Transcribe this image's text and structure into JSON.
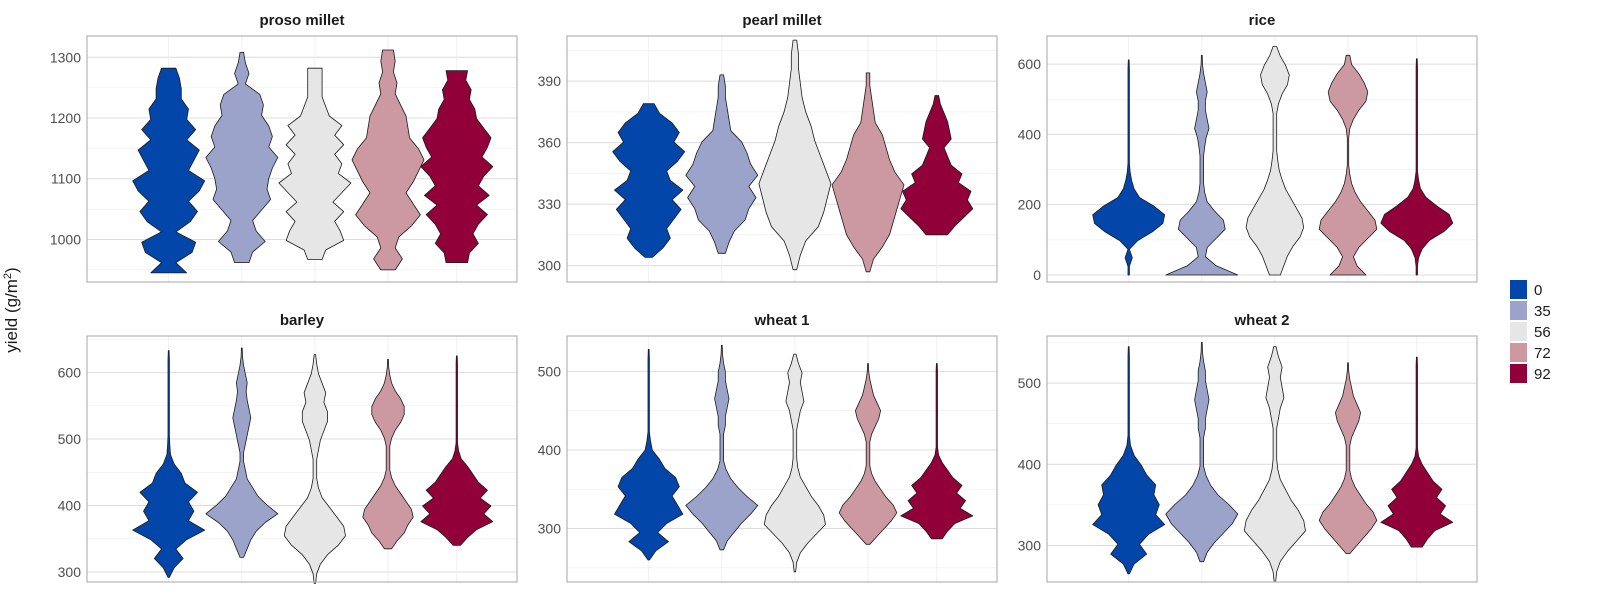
{
  "chart_data": {
    "type": "violin",
    "ylabel": "yield (g/m²)",
    "ylabel_parts": {
      "main": "yield (g/m",
      "sup": "2",
      "end": ")"
    },
    "xlabel": "",
    "grid": true,
    "legend": {
      "placement": "right",
      "title": "",
      "entries": [
        {
          "label": "0",
          "color": "#0346AA"
        },
        {
          "label": "35",
          "color": "#9BA3CB"
        },
        {
          "label": "56",
          "color": "#E6E6E6"
        },
        {
          "label": "72",
          "color": "#CC98A1"
        },
        {
          "label": "92",
          "color": "#910039"
        }
      ]
    },
    "panels": [
      {
        "title": "proso millet",
        "ylim": [
          930,
          1335
        ],
        "yticks": [
          1000,
          1100,
          1200,
          1300
        ],
        "series": [
          {
            "group": "0",
            "min": 945,
            "max": 1282,
            "w": [
              0.5,
              0.2,
              0.65,
              0.75,
              0.2,
              0.6,
              0.8,
              0.55,
              0.85,
              1.0,
              0.55,
              0.7,
              0.85,
              0.5,
              0.75,
              0.5,
              0.55,
              0.35,
              0.35,
              0.3,
              0.2
            ]
          },
          {
            "group": "35",
            "min": 962,
            "max": 1308,
            "w": [
              0.2,
              0.3,
              0.65,
              0.4,
              0.3,
              0.55,
              0.8,
              0.7,
              0.75,
              0.85,
              1.0,
              0.75,
              0.85,
              0.75,
              0.55,
              0.6,
              0.5,
              0.1,
              0.2,
              0.1,
              0.05
            ]
          },
          {
            "group": "56",
            "min": 967,
            "max": 1282,
            "w": [
              0.2,
              0.3,
              0.8,
              0.7,
              0.55,
              0.8,
              0.5,
              0.75,
              1.0,
              0.65,
              0.75,
              0.55,
              0.8,
              0.55,
              0.75,
              0.4,
              0.3,
              0.2,
              0.2,
              0.2,
              0.2
            ]
          },
          {
            "group": "72",
            "min": 950,
            "max": 1312,
            "w": [
              0.2,
              0.4,
              0.2,
              0.3,
              0.65,
              0.9,
              0.7,
              0.5,
              0.7,
              0.85,
              1.0,
              0.85,
              0.6,
              0.55,
              0.5,
              0.35,
              0.2,
              0.25,
              0.15,
              0.2,
              0.15
            ]
          },
          {
            "group": "92",
            "min": 962,
            "max": 1278,
            "w": [
              0.3,
              0.35,
              0.6,
              0.45,
              0.6,
              0.85,
              0.55,
              0.9,
              0.6,
              0.75,
              1.0,
              0.7,
              0.85,
              0.95,
              0.75,
              0.55,
              0.5,
              0.35,
              0.4,
              0.25,
              0.3
            ]
          }
        ]
      },
      {
        "title": "pearl millet",
        "ylim": [
          292,
          412
        ],
        "yticks": [
          300,
          330,
          360,
          390
        ],
        "series": [
          {
            "group": "0",
            "min": 304,
            "max": 379,
            "w": [
              0.1,
              0.4,
              0.6,
              0.5,
              0.7,
              0.9,
              0.65,
              0.95,
              0.6,
              0.5,
              0.8,
              1.0,
              0.7,
              0.85,
              0.65,
              0.3,
              0.15
            ]
          },
          {
            "group": "35",
            "min": 306,
            "max": 393,
            "w": [
              0.1,
              0.2,
              0.35,
              0.65,
              0.75,
              0.95,
              0.75,
              1.0,
              0.8,
              0.7,
              0.55,
              0.25,
              0.2,
              0.15,
              0.1,
              0.1,
              0.05
            ]
          },
          {
            "group": "56",
            "min": 298,
            "max": 410,
            "w": [
              0.05,
              0.15,
              0.3,
              0.65,
              0.8,
              0.9,
              1.0,
              0.85,
              0.7,
              0.55,
              0.45,
              0.3,
              0.2,
              0.15,
              0.1,
              0.1,
              0.05
            ]
          },
          {
            "group": "72",
            "min": 297,
            "max": 394,
            "w": [
              0.05,
              0.15,
              0.4,
              0.6,
              0.7,
              0.8,
              0.9,
              1.0,
              0.75,
              0.6,
              0.5,
              0.4,
              0.2,
              0.15,
              0.1,
              0.05,
              0.05
            ]
          },
          {
            "group": "92",
            "min": 315,
            "max": 383,
            "w": [
              0.3,
              0.5,
              0.75,
              1.0,
              0.85,
              0.95,
              0.6,
              0.7,
              0.4,
              0.3,
              0.2,
              0.4,
              0.35,
              0.3,
              0.2,
              0.1,
              0.05
            ]
          }
        ]
      },
      {
        "title": "rice",
        "ylim": [
          -20,
          680
        ],
        "yticks": [
          0,
          200,
          400,
          600
        ],
        "series": [
          {
            "group": "0",
            "min": 0,
            "max": 612,
            "w": [
              0.02,
              0.02,
              0.1,
              0.02,
              0.25,
              0.65,
              0.95,
              1.0,
              0.7,
              0.3,
              0.15,
              0.08,
              0.04,
              0.02,
              0.02,
              0.02,
              0.02,
              0.02,
              0.02,
              0.02,
              0.02,
              0.02,
              0.02,
              0.02,
              0.02,
              0.01
            ]
          },
          {
            "group": "35",
            "min": 0,
            "max": 625,
            "w": [
              1.0,
              0.4,
              0.1,
              0.15,
              0.4,
              0.65,
              0.6,
              0.35,
              0.15,
              0.08,
              0.05,
              0.05,
              0.05,
              0.05,
              0.08,
              0.12,
              0.2,
              0.15,
              0.1,
              0.1,
              0.15,
              0.1,
              0.05,
              0.02,
              0.01
            ]
          },
          {
            "group": "56",
            "min": 0,
            "max": 650,
            "w": [
              0.15,
              0.25,
              0.35,
              0.5,
              0.7,
              0.8,
              0.75,
              0.6,
              0.45,
              0.3,
              0.2,
              0.12,
              0.08,
              0.05,
              0.05,
              0.05,
              0.05,
              0.05,
              0.1,
              0.2,
              0.35,
              0.4,
              0.3,
              0.15,
              0.05
            ]
          },
          {
            "group": "72",
            "min": 0,
            "max": 625,
            "w": [
              0.5,
              0.25,
              0.15,
              0.3,
              0.55,
              0.8,
              0.75,
              0.55,
              0.35,
              0.2,
              0.1,
              0.05,
              0.02,
              0.02,
              0.02,
              0.02,
              0.05,
              0.15,
              0.3,
              0.5,
              0.55,
              0.45,
              0.3,
              0.1,
              0.05
            ]
          },
          {
            "group": "92",
            "min": 0,
            "max": 615,
            "w": [
              0.02,
              0.02,
              0.05,
              0.15,
              0.35,
              0.75,
              1.0,
              0.9,
              0.55,
              0.25,
              0.1,
              0.05,
              0.02,
              0.02,
              0.02,
              0.02,
              0.02,
              0.02,
              0.02,
              0.02,
              0.02,
              0.02,
              0.02,
              0.02,
              0.02,
              0.01
            ]
          }
        ]
      },
      {
        "title": "barley",
        "ylim": [
          285,
          655
        ],
        "yticks": [
          300,
          400,
          500,
          600
        ],
        "series": [
          {
            "group": "0",
            "min": 292,
            "max": 633,
            "w": [
              0.02,
              0.15,
              0.4,
              0.2,
              0.5,
              1.0,
              0.55,
              0.7,
              0.55,
              0.8,
              0.45,
              0.35,
              0.15,
              0.05,
              0.03,
              0.02,
              0.02,
              0.02,
              0.02,
              0.02,
              0.02,
              0.02,
              0.02,
              0.02,
              0.01
            ]
          },
          {
            "group": "35",
            "min": 322,
            "max": 637,
            "w": [
              0.05,
              0.15,
              0.25,
              0.4,
              0.65,
              1.0,
              0.7,
              0.45,
              0.3,
              0.15,
              0.1,
              0.05,
              0.05,
              0.1,
              0.15,
              0.2,
              0.25,
              0.2,
              0.15,
              0.12,
              0.15,
              0.1,
              0.05,
              0.02,
              0.01
            ]
          },
          {
            "group": "56",
            "min": 283,
            "max": 627,
            "w": [
              0.02,
              0.05,
              0.15,
              0.35,
              0.65,
              0.85,
              0.8,
              0.6,
              0.4,
              0.2,
              0.1,
              0.05,
              0.05,
              0.05,
              0.1,
              0.15,
              0.25,
              0.35,
              0.35,
              0.25,
              0.3,
              0.2,
              0.1,
              0.05,
              0.02
            ]
          },
          {
            "group": "72",
            "min": 335,
            "max": 620,
            "w": [
              0.1,
              0.25,
              0.45,
              0.55,
              0.7,
              0.65,
              0.5,
              0.35,
              0.2,
              0.1,
              0.05,
              0.05,
              0.05,
              0.05,
              0.1,
              0.2,
              0.35,
              0.45,
              0.45,
              0.35,
              0.2,
              0.1,
              0.05,
              0.02,
              0.01
            ]
          },
          {
            "group": "92",
            "min": 340,
            "max": 625,
            "w": [
              0.1,
              0.3,
              0.55,
              1.0,
              0.75,
              0.95,
              0.65,
              0.85,
              0.6,
              0.45,
              0.3,
              0.12,
              0.05,
              0.02,
              0.02,
              0.02,
              0.02,
              0.02,
              0.02,
              0.02,
              0.02,
              0.02,
              0.02,
              0.02,
              0.01
            ]
          }
        ]
      },
      {
        "title": "wheat 1",
        "ylim": [
          232,
          545
        ],
        "yticks": [
          300,
          400,
          500
        ],
        "series": [
          {
            "group": "0",
            "min": 260,
            "max": 528,
            "w": [
              0.02,
              0.2,
              0.55,
              0.25,
              0.5,
              0.95,
              0.8,
              0.65,
              0.85,
              0.75,
              0.45,
              0.3,
              0.1,
              0.05,
              0.02,
              0.02,
              0.02,
              0.02,
              0.02,
              0.02,
              0.02,
              0.02,
              0.02,
              0.01
            ]
          },
          {
            "group": "35",
            "min": 273,
            "max": 533,
            "w": [
              0.05,
              0.15,
              0.35,
              0.55,
              0.8,
              1.0,
              0.7,
              0.45,
              0.25,
              0.12,
              0.05,
              0.05,
              0.05,
              0.05,
              0.1,
              0.1,
              0.15,
              0.2,
              0.15,
              0.1,
              0.1,
              0.05,
              0.02,
              0.01
            ]
          },
          {
            "group": "56",
            "min": 245,
            "max": 522,
            "w": [
              0.02,
              0.05,
              0.15,
              0.35,
              0.6,
              0.85,
              0.8,
              0.65,
              0.45,
              0.3,
              0.15,
              0.08,
              0.05,
              0.05,
              0.05,
              0.05,
              0.1,
              0.15,
              0.25,
              0.2,
              0.15,
              0.2,
              0.1,
              0.03
            ]
          },
          {
            "group": "72",
            "min": 280,
            "max": 510,
            "w": [
              0.05,
              0.25,
              0.45,
              0.65,
              0.8,
              0.7,
              0.5,
              0.35,
              0.2,
              0.1,
              0.05,
              0.05,
              0.05,
              0.05,
              0.1,
              0.2,
              0.3,
              0.35,
              0.25,
              0.15,
              0.1,
              0.05,
              0.02,
              0.01
            ]
          },
          {
            "group": "92",
            "min": 287,
            "max": 510,
            "w": [
              0.15,
              0.3,
              0.5,
              1.0,
              0.65,
              0.8,
              0.55,
              0.7,
              0.45,
              0.3,
              0.15,
              0.05,
              0.02,
              0.02,
              0.02,
              0.02,
              0.02,
              0.02,
              0.02,
              0.02,
              0.02,
              0.02,
              0.02,
              0.01
            ]
          }
        ]
      },
      {
        "title": "wheat 2",
        "ylim": [
          255,
          558
        ],
        "yticks": [
          300,
          400,
          500
        ],
        "series": [
          {
            "group": "0",
            "min": 265,
            "max": 545,
            "w": [
              0.02,
              0.15,
              0.5,
              0.3,
              0.55,
              1.0,
              0.75,
              0.85,
              0.7,
              0.75,
              0.5,
              0.35,
              0.15,
              0.05,
              0.02,
              0.02,
              0.02,
              0.02,
              0.02,
              0.02,
              0.02,
              0.02,
              0.02,
              0.01
            ]
          },
          {
            "group": "35",
            "min": 280,
            "max": 550,
            "w": [
              0.05,
              0.15,
              0.35,
              0.6,
              0.85,
              1.0,
              0.75,
              0.45,
              0.25,
              0.12,
              0.05,
              0.05,
              0.05,
              0.05,
              0.1,
              0.1,
              0.15,
              0.2,
              0.15,
              0.1,
              0.1,
              0.05,
              0.02,
              0.01
            ]
          },
          {
            "group": "56",
            "min": 255,
            "max": 545,
            "w": [
              0.02,
              0.05,
              0.15,
              0.35,
              0.6,
              0.85,
              0.8,
              0.65,
              0.45,
              0.3,
              0.15,
              0.08,
              0.05,
              0.05,
              0.05,
              0.05,
              0.1,
              0.15,
              0.25,
              0.2,
              0.15,
              0.2,
              0.1,
              0.03
            ]
          },
          {
            "group": "72",
            "min": 290,
            "max": 525,
            "w": [
              0.05,
              0.25,
              0.45,
              0.65,
              0.8,
              0.7,
              0.5,
              0.35,
              0.2,
              0.1,
              0.05,
              0.05,
              0.05,
              0.05,
              0.1,
              0.2,
              0.3,
              0.35,
              0.25,
              0.15,
              0.1,
              0.05,
              0.02,
              0.01
            ]
          },
          {
            "group": "92",
            "min": 298,
            "max": 532,
            "w": [
              0.15,
              0.3,
              0.5,
              1.0,
              0.65,
              0.8,
              0.55,
              0.7,
              0.45,
              0.3,
              0.15,
              0.05,
              0.02,
              0.02,
              0.02,
              0.02,
              0.02,
              0.02,
              0.02,
              0.02,
              0.02,
              0.02,
              0.02,
              0.01
            ]
          }
        ]
      }
    ]
  }
}
